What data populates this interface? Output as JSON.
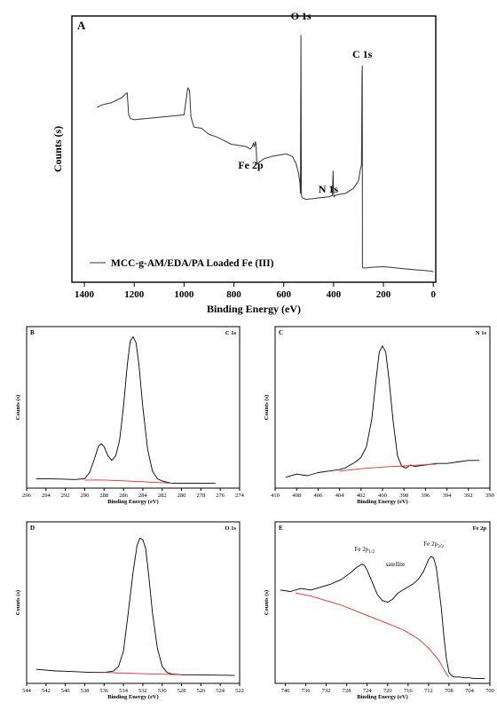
{
  "chart_data": [
    {
      "id": "A",
      "type": "line",
      "panel_label": "A",
      "xlabel": "Binding Energy (eV)",
      "ylabel": "Counts (s)",
      "xlim": [
        1450,
        -10
      ],
      "ylim": [
        0,
        100
      ],
      "x_ticks": [
        1400,
        1200,
        1000,
        800,
        600,
        400,
        200,
        0
      ],
      "x_tick_labels": [
        "1400",
        "1200",
        "1000",
        "800",
        "600",
        "400",
        "200",
        "0"
      ],
      "legend": {
        "label": "MCC-g-AM/EDA/PA Loaded Fe (III)",
        "position": "bottom-left"
      },
      "annotations": [
        {
          "text": "O 1s",
          "x": 531
        },
        {
          "text": "C 1s",
          "x": 285
        },
        {
          "text": "Fe 2p",
          "x": 711
        },
        {
          "text": "N 1s",
          "x": 400
        }
      ],
      "series": [
        {
          "color": "#333333",
          "x": [
            1350,
            1330,
            1310,
            1290,
            1270,
            1250,
            1235,
            1228,
            1222,
            1215,
            1200,
            1150,
            1100,
            1050,
            1000,
            985,
            978,
            972,
            960,
            930,
            900,
            870,
            840,
            810,
            780,
            750,
            735,
            725,
            722,
            717,
            714,
            711,
            708,
            705,
            700,
            680,
            650,
            620,
            590,
            565,
            550,
            540,
            535,
            533,
            531,
            529,
            527,
            524,
            510,
            480,
            450,
            420,
            405,
            402,
            400,
            398,
            395,
            380,
            350,
            320,
            300,
            292,
            288,
            286,
            285,
            284,
            282,
            280,
            270,
            250,
            220,
            200,
            180,
            150,
            120,
            100,
            80,
            60,
            40,
            20,
            10,
            5,
            0
          ],
          "y": [
            67,
            68,
            68.5,
            69,
            70,
            71,
            72.5,
            73,
            64,
            62.5,
            62,
            62.5,
            63,
            63.5,
            64,
            75,
            74,
            63,
            59,
            58.5,
            56,
            55,
            53.5,
            52,
            51.5,
            51,
            50,
            51,
            52.5,
            51,
            53,
            52,
            44.5,
            44,
            44.5,
            46,
            47,
            47.5,
            48,
            47,
            44,
            40,
            36,
            32,
            96.5,
            31,
            30.5,
            30,
            29.5,
            29.8,
            30.2,
            30.5,
            31,
            41,
            32,
            30.5,
            31,
            31.5,
            32,
            34,
            37,
            42,
            43.5,
            80,
            84,
            2,
            1.5,
            1.5,
            1.5,
            1.7,
            1.9,
            2,
            1.8,
            1.5,
            1.2,
            1,
            0.8,
            0.6,
            0.5,
            0.3,
            0.2,
            0.1,
            0
          ]
        }
      ]
    },
    {
      "id": "B",
      "type": "line",
      "panel_label": "B",
      "title": "C 1s",
      "xlabel": "Binding Energy (eV)",
      "ylabel": "Counts (s)",
      "xlim": [
        296,
        274
      ],
      "ylim": [
        0,
        100
      ],
      "x_ticks": [
        296,
        294,
        292,
        290,
        288,
        286,
        284,
        282,
        280,
        278,
        276,
        274
      ],
      "x_tick_labels": [
        "296",
        "294",
        "292",
        "290",
        "288",
        "286",
        "284",
        "282",
        "280",
        "278",
        "276",
        "274"
      ],
      "series": [
        {
          "color": "#000000",
          "x": [
            295,
            294,
            293,
            292,
            291,
            290,
            289.5,
            289,
            288.6,
            288.3,
            288,
            287.6,
            287.2,
            286.8,
            286.4,
            286,
            285.6,
            285.3,
            285,
            284.7,
            284.4,
            284,
            283.5,
            283,
            282.5,
            282,
            281,
            280,
            279,
            278,
            277,
            276.5
          ],
          "y": [
            5,
            5,
            4.8,
            4.7,
            4.5,
            5,
            9,
            18,
            26,
            28,
            26,
            20,
            17,
            20,
            30,
            52,
            80,
            95,
            98,
            94,
            80,
            52,
            24,
            10,
            5,
            3.5,
            2,
            2,
            2,
            2,
            2,
            2
          ]
        },
        {
          "color": "#e03030",
          "x": [
            290,
            289,
            288,
            287,
            286,
            285,
            284,
            283,
            282,
            281
          ],
          "y": [
            4,
            4.2,
            4.1,
            3.9,
            3.6,
            3.3,
            3.0,
            2.7,
            2.4,
            2.1
          ]
        }
      ]
    },
    {
      "id": "C",
      "type": "line",
      "panel_label": "C",
      "title": "N 1s",
      "xlabel": "Binding Energy (eV)",
      "ylabel": "Counts (s)",
      "xlim": [
        410,
        390
      ],
      "ylim": [
        0,
        100
      ],
      "x_ticks": [
        410,
        408,
        406,
        404,
        402,
        400,
        398,
        396,
        394,
        392,
        390
      ],
      "x_tick_labels": [
        "410",
        "408",
        "406",
        "404",
        "402",
        "400",
        "398",
        "396",
        "394",
        "392",
        "390"
      ],
      "series": [
        {
          "color": "#000000",
          "x": [
            409,
            408,
            407,
            406,
            405,
            404,
            403.5,
            403,
            402.5,
            402,
            401.5,
            401,
            400.6,
            400.3,
            400,
            399.7,
            399.4,
            399,
            398.6,
            398.2,
            397.8,
            397.4,
            397,
            396,
            395,
            394,
            393,
            392,
            391
          ],
          "y": [
            6,
            8,
            7,
            9,
            10,
            11,
            12,
            14,
            16,
            19,
            26,
            44,
            70,
            88,
            92,
            88,
            70,
            42,
            20,
            13,
            12,
            14,
            13,
            14,
            15,
            15,
            16,
            17,
            17
          ]
        },
        {
          "color": "#e03030",
          "x": [
            404,
            403,
            402,
            401,
            400,
            399,
            398,
            397,
            396,
            395
          ],
          "y": [
            10,
            10.8,
            11.5,
            12.1,
            12.6,
            13,
            13.4,
            13.8,
            14.2,
            14.6
          ]
        }
      ]
    },
    {
      "id": "D",
      "type": "line",
      "panel_label": "D",
      "title": "O 1s",
      "xlabel": "Binding Energy (eV)",
      "ylabel": "Counts (s)",
      "xlim": [
        544,
        522
      ],
      "ylim": [
        0,
        100
      ],
      "x_ticks": [
        544,
        542,
        540,
        538,
        536,
        534,
        532,
        530,
        528,
        526,
        524,
        522
      ],
      "x_tick_labels": [
        "544",
        "542",
        "540",
        "538",
        "536",
        "534",
        "532",
        "530",
        "528",
        "526",
        "524",
        "522"
      ],
      "series": [
        {
          "color": "#000000",
          "x": [
            543,
            542,
            541,
            540,
            539,
            538,
            537,
            536,
            535,
            534.5,
            534,
            533.5,
            533,
            532.6,
            532.3,
            532,
            531.7,
            531.4,
            531,
            530.5,
            530,
            529.5,
            529,
            528,
            527,
            526,
            525,
            524,
            523,
            522.5
          ],
          "y": [
            8,
            7.5,
            7,
            6.8,
            6.5,
            6.2,
            6,
            6,
            7,
            10,
            20,
            45,
            72,
            89,
            94,
            93,
            87,
            70,
            45,
            22,
            10,
            6,
            5,
            4.5,
            4.5,
            4.4,
            4.3,
            4.2,
            4.1,
            4
          ]
        },
        {
          "color": "#e03030",
          "x": [
            536,
            535,
            534,
            533,
            532,
            531,
            530,
            529,
            528
          ],
          "y": [
            6,
            5.8,
            5.6,
            5.4,
            5.2,
            5,
            4.8,
            4.6,
            4.5
          ]
        }
      ]
    },
    {
      "id": "E",
      "type": "line",
      "panel_label": "E",
      "title": "Fe 2p",
      "xlabel": "Binding Energy (eV)",
      "ylabel": "Counts (s)",
      "xlim": [
        742,
        700
      ],
      "ylim": [
        0,
        100
      ],
      "x_ticks": [
        740,
        736,
        732,
        728,
        724,
        720,
        716,
        712,
        708,
        704,
        700
      ],
      "x_tick_labels": [
        "740",
        "736",
        "732",
        "728",
        "724",
        "720",
        "716",
        "712",
        "708",
        "704",
        "700"
      ],
      "annotations": [
        {
          "label_main": "Fe 2p",
          "label_sub": "1/2",
          "x": 724.5
        },
        {
          "label_main": "Fe 2p",
          "label_sub": "3/2",
          "x": 711
        },
        {
          "text": "satellite",
          "x": 718.5
        }
      ],
      "series": [
        {
          "color": "#000000",
          "x": [
            741,
            739,
            737,
            735,
            733,
            731,
            729,
            727,
            726,
            725,
            724.5,
            724,
            723,
            722,
            721,
            720,
            719,
            718,
            717,
            716,
            715,
            714,
            713,
            712,
            711.5,
            711,
            710.5,
            710,
            709.5,
            709,
            708.5,
            708,
            707.5,
            707,
            706,
            705,
            704,
            703,
            702,
            701
          ],
          "y": [
            60,
            59,
            61,
            60,
            62,
            64,
            67,
            72,
            75,
            77,
            76,
            73,
            65,
            57,
            53,
            52,
            54,
            58,
            60,
            62,
            64,
            67,
            72,
            80,
            82,
            81,
            75,
            62,
            48,
            30,
            15,
            6,
            4,
            3,
            3,
            2.5,
            2.5,
            2,
            2,
            2
          ]
        },
        {
          "color": "#e03030",
          "x": [
            738,
            735,
            732,
            729,
            726,
            723,
            720,
            717,
            714,
            712,
            710,
            709,
            708.5,
            708
          ],
          "y": [
            58,
            56,
            53,
            50,
            46,
            42,
            38,
            34,
            28,
            22,
            14,
            8,
            5,
            3
          ]
        }
      ]
    }
  ]
}
